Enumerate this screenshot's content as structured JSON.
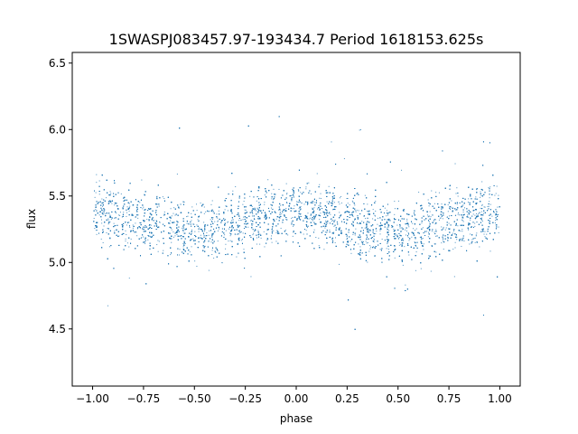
{
  "chart_data": {
    "type": "scatter",
    "title": "1SWASPJ083457.97-193434.7 Period 1618153.625s",
    "xlabel": "phase",
    "ylabel": "flux",
    "xlim": [
      -1.1,
      1.1
    ],
    "ylim": [
      4.07,
      6.58
    ],
    "x_ticks": [
      -1.0,
      -0.75,
      -0.5,
      -0.25,
      0.0,
      0.25,
      0.5,
      0.75,
      1.0
    ],
    "x_tick_labels": [
      "−1.00",
      "−0.75",
      "−0.50",
      "−0.25",
      "0.00",
      "0.25",
      "0.50",
      "0.75",
      "1.00"
    ],
    "y_ticks": [
      4.5,
      5.0,
      5.5,
      6.0,
      6.5
    ],
    "y_tick_labels": [
      "4.5",
      "5.0",
      "5.5",
      "6.0",
      "6.5"
    ],
    "grid": false,
    "legend": "none",
    "marker_color": "#1f77b4",
    "series": [
      {
        "x_range": [
          -1.0,
          1.0
        ],
        "y_range": [
          4.2,
          6.46
        ],
        "trend_phase": [
          -1.0,
          -0.75,
          -0.5,
          -0.25,
          0.0,
          0.25,
          0.5,
          0.75,
          1.0
        ],
        "trend_flux": [
          5.38,
          5.3,
          5.22,
          5.32,
          5.4,
          5.3,
          5.22,
          5.32,
          5.38
        ]
      }
    ]
  }
}
